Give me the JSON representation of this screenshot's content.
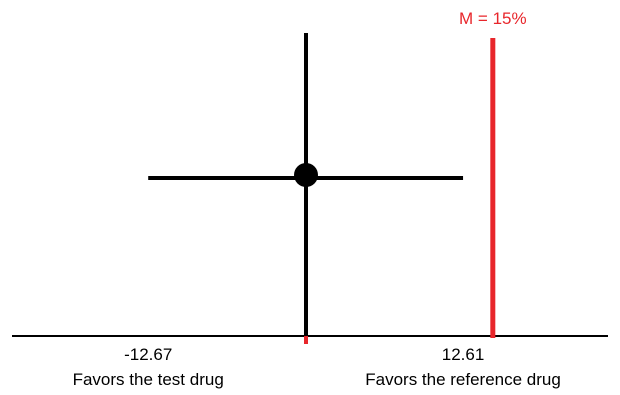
{
  "chart_data": {
    "type": "forest",
    "title": "",
    "xlabel": "",
    "ylabel": "",
    "estimate": 0.0,
    "ci": [
      -12.67,
      12.61
    ],
    "zero": 0,
    "margin": {
      "label": "M = 15%",
      "value": 15
    },
    "xlim": [
      -22,
      22
    ],
    "tick_labels": [
      {
        "value": -12.67,
        "label": "-12.67"
      },
      {
        "value": 12.61,
        "label": "12.61"
      }
    ],
    "direction_labels": {
      "left": "Favors the test drug",
      "right": "Favors the reference drug"
    },
    "grid": false,
    "colors": {
      "axis": "#000000",
      "estimate": "#000000",
      "margin": "#e8262b",
      "zero_tick": "#e8262b"
    }
  }
}
